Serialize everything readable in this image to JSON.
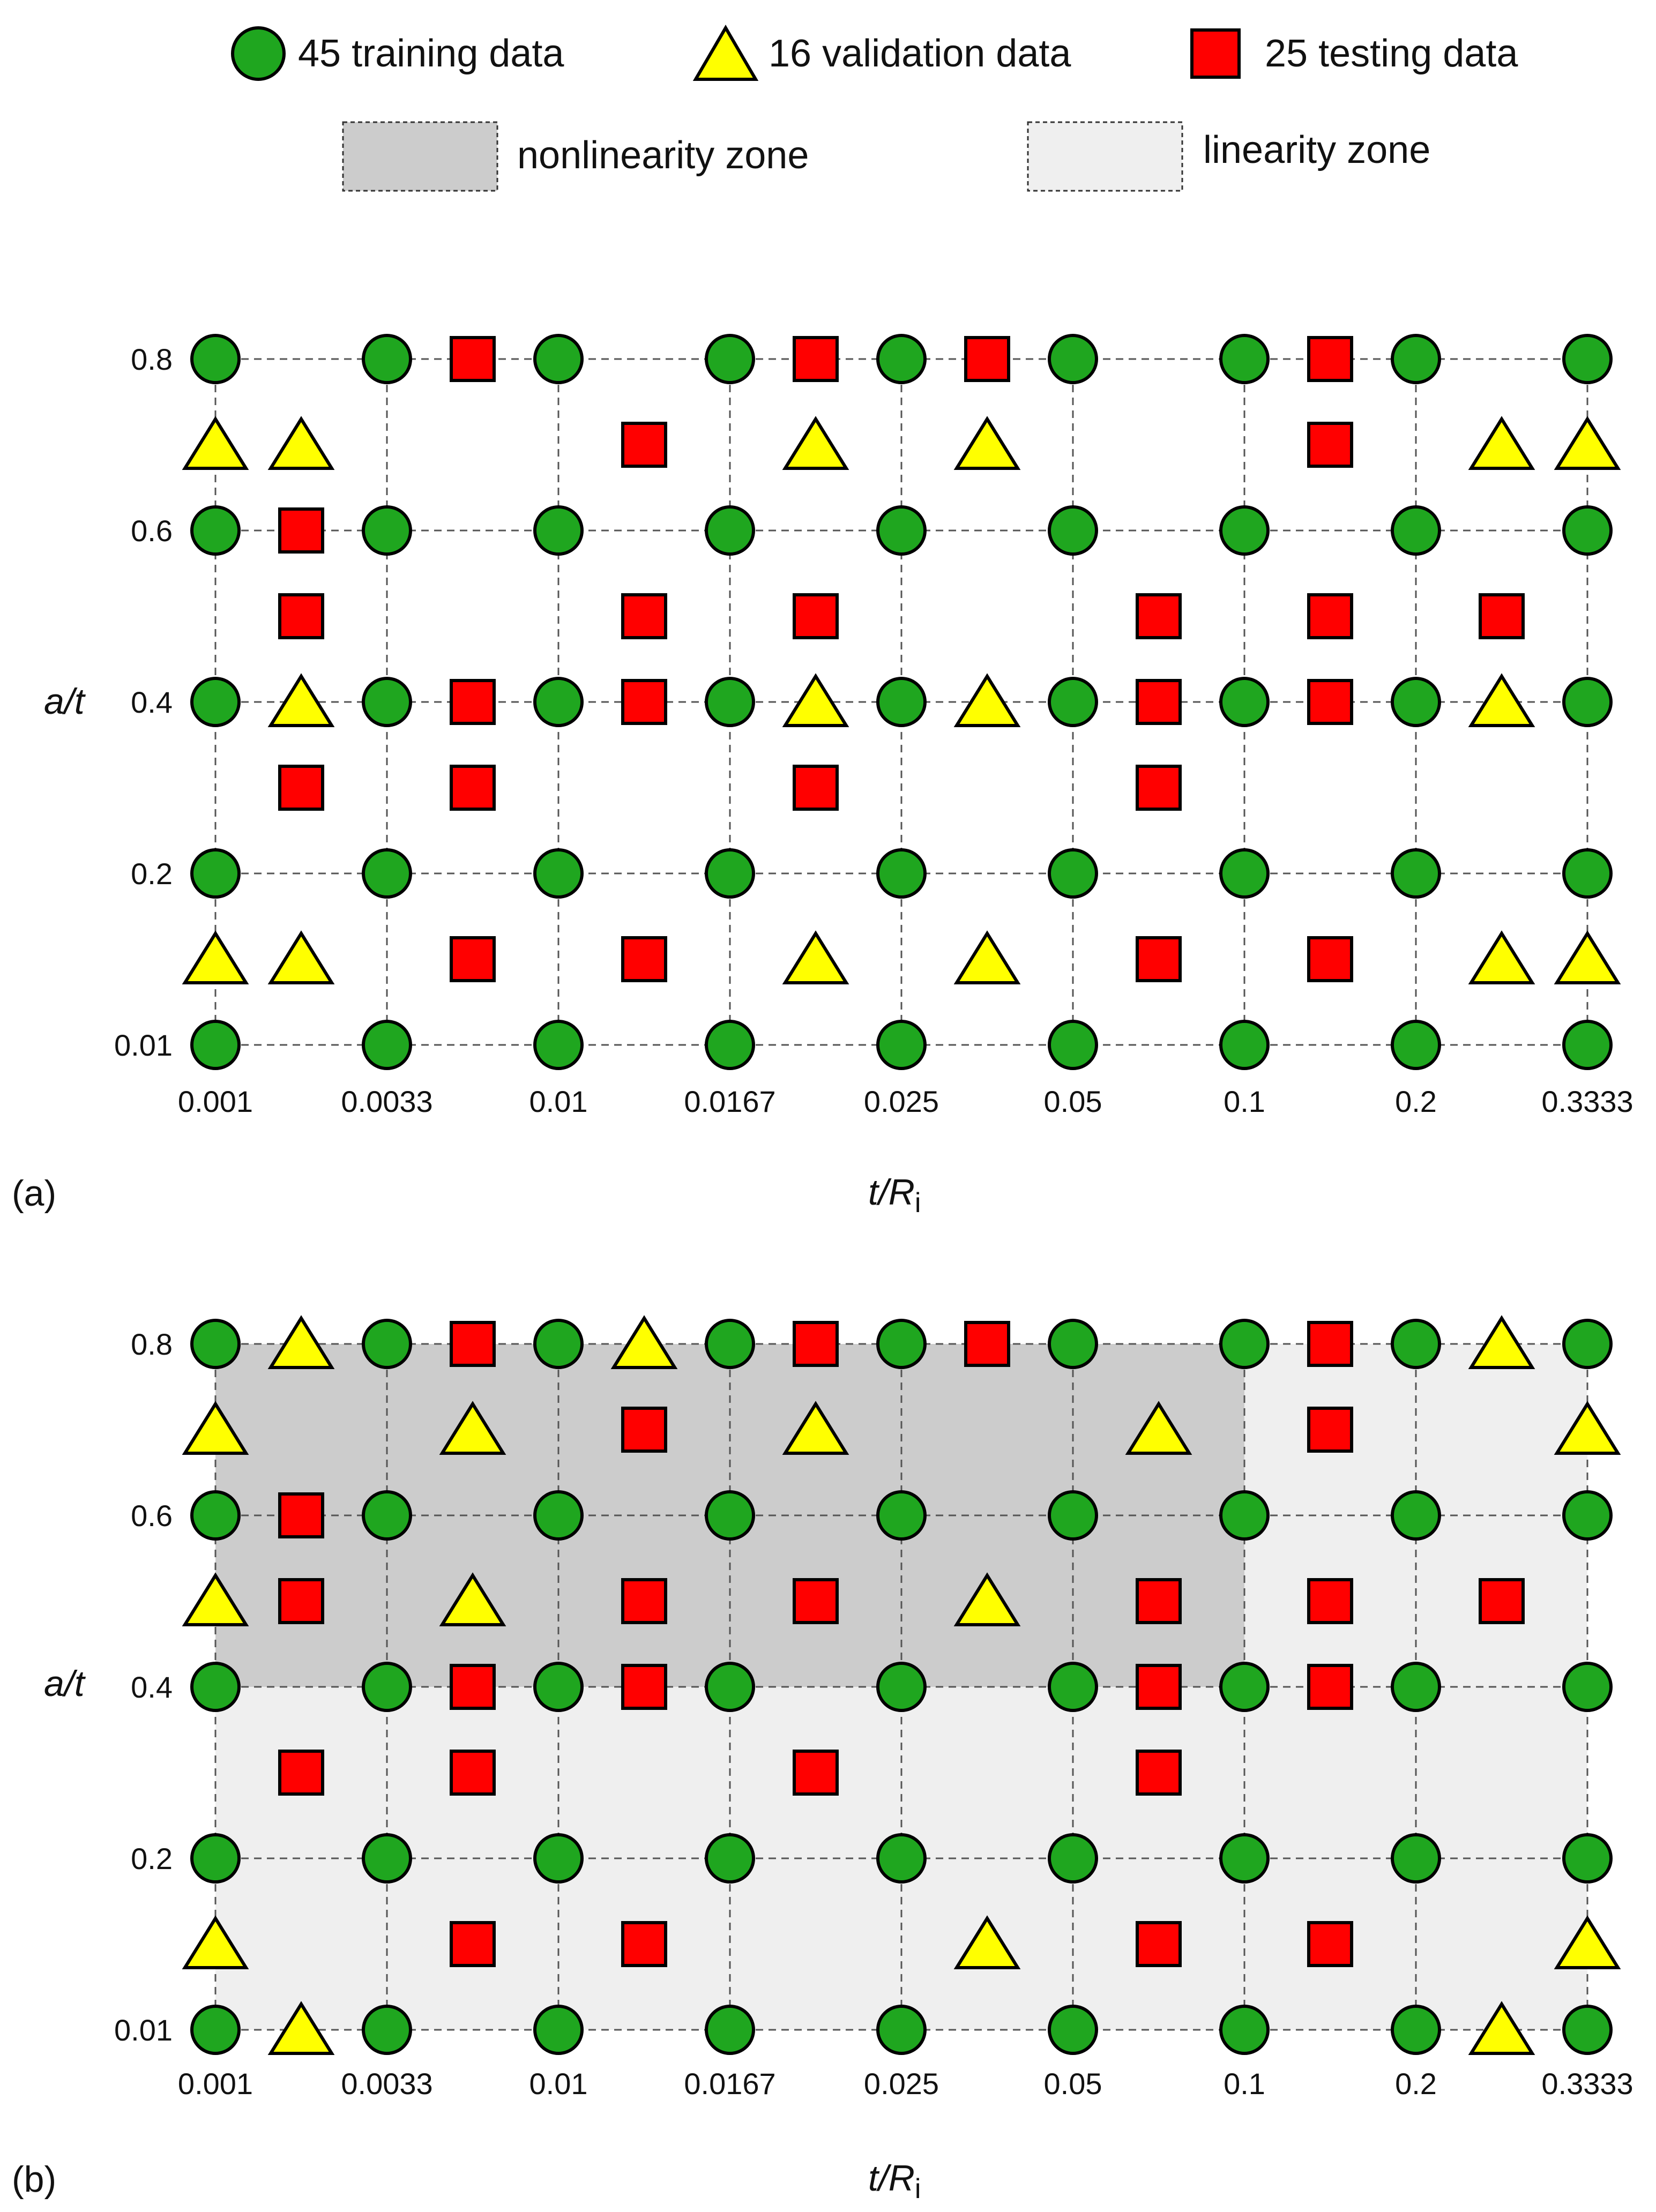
{
  "legend": {
    "training": {
      "label": "45 training data",
      "color": "#1fa61f"
    },
    "validation": {
      "label": "16 validation data",
      "color": "#ffff00"
    },
    "testing": {
      "label": "25 testing data",
      "color": "#ff0000"
    },
    "nonlinearity": {
      "label": "nonlinearity zone",
      "color": "#cccccc"
    },
    "linearity": {
      "label": "linearity zone",
      "color": "#efefef"
    }
  },
  "chart_data": [
    {
      "type": "scatter",
      "panel_label": "(a)",
      "xlabel_main": "t/R",
      "xlabel_sub": "i",
      "ylabel": "a/t",
      "x_ticks": [
        "0.001",
        "0.0033",
        "0.01",
        "0.0167",
        "0.025",
        "0.05",
        "0.1",
        "0.2",
        "0.3333"
      ],
      "y_ticks": [
        "0.01",
        "0.2",
        "0.4",
        "0.6",
        "0.8"
      ],
      "grid": true,
      "zones": [],
      "series": [
        {
          "name": "45 training data",
          "marker": "circle",
          "points": [
            [
              0,
              0
            ],
            [
              1,
              0
            ],
            [
              2,
              0
            ],
            [
              3,
              0
            ],
            [
              4,
              0
            ],
            [
              5,
              0
            ],
            [
              6,
              0
            ],
            [
              7,
              0
            ],
            [
              8,
              0
            ],
            [
              0,
              2
            ],
            [
              1,
              2
            ],
            [
              2,
              2
            ],
            [
              3,
              2
            ],
            [
              4,
              2
            ],
            [
              5,
              2
            ],
            [
              6,
              2
            ],
            [
              7,
              2
            ],
            [
              8,
              2
            ],
            [
              0,
              4
            ],
            [
              1,
              4
            ],
            [
              2,
              4
            ],
            [
              3,
              4
            ],
            [
              4,
              4
            ],
            [
              5,
              4
            ],
            [
              6,
              4
            ],
            [
              7,
              4
            ],
            [
              8,
              4
            ],
            [
              0,
              6
            ],
            [
              1,
              6
            ],
            [
              2,
              6
            ],
            [
              3,
              6
            ],
            [
              4,
              6
            ],
            [
              5,
              6
            ],
            [
              6,
              6
            ],
            [
              7,
              6
            ],
            [
              8,
              6
            ],
            [
              0,
              8
            ],
            [
              1,
              8
            ],
            [
              2,
              8
            ],
            [
              3,
              8
            ],
            [
              4,
              8
            ],
            [
              5,
              8
            ],
            [
              6,
              8
            ],
            [
              7,
              8
            ],
            [
              8,
              8
            ]
          ]
        },
        {
          "name": "16 validation data",
          "marker": "triangle",
          "points": [
            [
              0,
              7
            ],
            [
              0.5,
              7
            ],
            [
              3.5,
              7
            ],
            [
              4.5,
              7
            ],
            [
              7.5,
              7
            ],
            [
              8,
              7
            ],
            [
              0.5,
              4
            ],
            [
              3.5,
              4
            ],
            [
              4.5,
              4
            ],
            [
              7.5,
              4
            ],
            [
              0,
              1
            ],
            [
              0.5,
              1
            ],
            [
              3.5,
              1
            ],
            [
              4.5,
              1
            ],
            [
              7.5,
              1
            ],
            [
              8,
              1
            ]
          ]
        },
        {
          "name": "25 testing data",
          "marker": "square",
          "points": [
            [
              1.5,
              8
            ],
            [
              3.5,
              8
            ],
            [
              4.5,
              8
            ],
            [
              6.5,
              8
            ],
            [
              2.5,
              7
            ],
            [
              6.5,
              7
            ],
            [
              0.5,
              6
            ],
            [
              0.5,
              5
            ],
            [
              2.5,
              5
            ],
            [
              3.5,
              5
            ],
            [
              5.5,
              5
            ],
            [
              6.5,
              5
            ],
            [
              7.5,
              5
            ],
            [
              1.5,
              4
            ],
            [
              2.5,
              4
            ],
            [
              5.5,
              4
            ],
            [
              6.5,
              4
            ],
            [
              0.5,
              3
            ],
            [
              1.5,
              3
            ],
            [
              3.5,
              3
            ],
            [
              5.5,
              3
            ],
            [
              1.5,
              1
            ],
            [
              2.5,
              1
            ],
            [
              5.5,
              1
            ],
            [
              6.5,
              1
            ]
          ]
        }
      ]
    },
    {
      "type": "scatter",
      "panel_label": "(b)",
      "xlabel_main": "t/R",
      "xlabel_sub": "i",
      "ylabel": "a/t",
      "x_ticks": [
        "0.001",
        "0.0033",
        "0.01",
        "0.0167",
        "0.025",
        "0.05",
        "0.1",
        "0.2",
        "0.3333"
      ],
      "y_ticks": [
        "0.01",
        "0.2",
        "0.4",
        "0.6",
        "0.8"
      ],
      "grid": true,
      "zones": [
        {
          "name": "linearity zone",
          "x_range": [
            "0.001",
            "0.3333"
          ],
          "y_range": [
            "0.01",
            "0.8"
          ]
        },
        {
          "name": "nonlinearity zone",
          "x_range": [
            "0.001",
            "0.1"
          ],
          "y_range": [
            "0.4",
            "0.8"
          ]
        }
      ],
      "series": [
        {
          "name": "45 training data",
          "marker": "circle",
          "points": [
            [
              0,
              0
            ],
            [
              1,
              0
            ],
            [
              2,
              0
            ],
            [
              3,
              0
            ],
            [
              4,
              0
            ],
            [
              5,
              0
            ],
            [
              6,
              0
            ],
            [
              7,
              0
            ],
            [
              8,
              0
            ],
            [
              0,
              2
            ],
            [
              1,
              2
            ],
            [
              2,
              2
            ],
            [
              3,
              2
            ],
            [
              4,
              2
            ],
            [
              5,
              2
            ],
            [
              6,
              2
            ],
            [
              7,
              2
            ],
            [
              8,
              2
            ],
            [
              0,
              4
            ],
            [
              1,
              4
            ],
            [
              2,
              4
            ],
            [
              3,
              4
            ],
            [
              4,
              4
            ],
            [
              5,
              4
            ],
            [
              6,
              4
            ],
            [
              7,
              4
            ],
            [
              8,
              4
            ],
            [
              0,
              6
            ],
            [
              1,
              6
            ],
            [
              2,
              6
            ],
            [
              3,
              6
            ],
            [
              4,
              6
            ],
            [
              5,
              6
            ],
            [
              6,
              6
            ],
            [
              7,
              6
            ],
            [
              8,
              6
            ],
            [
              0,
              8
            ],
            [
              1,
              8
            ],
            [
              2,
              8
            ],
            [
              3,
              8
            ],
            [
              4,
              8
            ],
            [
              5,
              8
            ],
            [
              6,
              8
            ],
            [
              7,
              8
            ],
            [
              8,
              8
            ]
          ]
        },
        {
          "name": "16 validation data",
          "marker": "triangle",
          "points": [
            [
              0.5,
              8
            ],
            [
              2.5,
              8
            ],
            [
              7.5,
              8
            ],
            [
              0,
              7
            ],
            [
              1.5,
              7
            ],
            [
              3.5,
              7
            ],
            [
              5.5,
              7
            ],
            [
              8,
              7
            ],
            [
              0,
              5
            ],
            [
              1.5,
              5
            ],
            [
              4.5,
              5
            ],
            [
              0,
              1
            ],
            [
              4.5,
              1
            ],
            [
              8,
              1
            ],
            [
              0.5,
              0
            ],
            [
              7.5,
              0
            ]
          ]
        },
        {
          "name": "25 testing data",
          "marker": "square",
          "points": [
            [
              1.5,
              8
            ],
            [
              3.5,
              8
            ],
            [
              4.5,
              8
            ],
            [
              6.5,
              8
            ],
            [
              2.5,
              7
            ],
            [
              6.5,
              7
            ],
            [
              0.5,
              6
            ],
            [
              0.5,
              5
            ],
            [
              2.5,
              5
            ],
            [
              3.5,
              5
            ],
            [
              5.5,
              5
            ],
            [
              6.5,
              5
            ],
            [
              7.5,
              5
            ],
            [
              1.5,
              4
            ],
            [
              2.5,
              4
            ],
            [
              5.5,
              4
            ],
            [
              6.5,
              4
            ],
            [
              0.5,
              3
            ],
            [
              1.5,
              3
            ],
            [
              3.5,
              3
            ],
            [
              5.5,
              3
            ],
            [
              1.5,
              1
            ],
            [
              2.5,
              1
            ],
            [
              5.5,
              1
            ],
            [
              6.5,
              1
            ]
          ]
        }
      ]
    }
  ]
}
